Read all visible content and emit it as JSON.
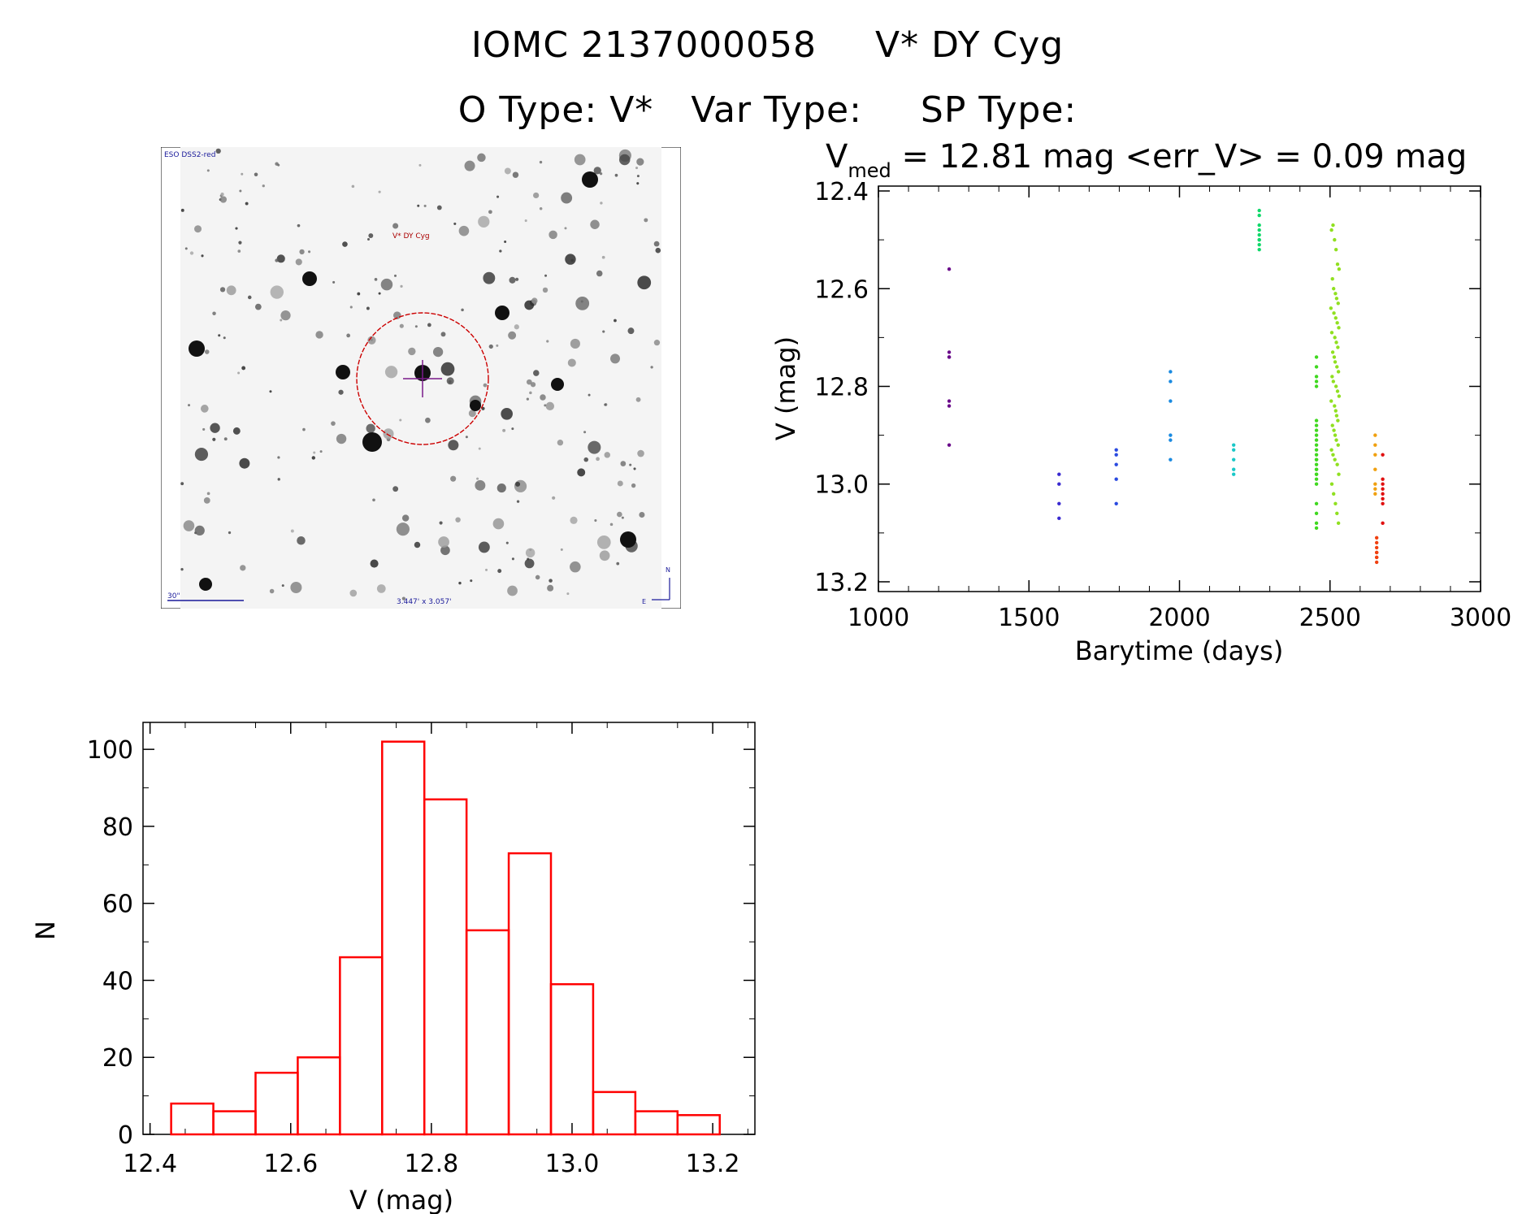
{
  "header": {
    "id_label": "IOMC 2137000058",
    "name_label": "V* DY Cyg",
    "otype_label": "O Type: V*",
    "vartype_label": "Var Type:",
    "sptype_label": "SP Type:"
  },
  "finder_chart": {
    "survey_label": "ESO DSS2-red",
    "target_label": "V* DY Cyg",
    "scale_label": "30\"",
    "fov_label": "3.447' x 3.057'",
    "north_label": "N",
    "east_label": "E",
    "circle_color": "#cc0000",
    "label_color": "#1a1a9a"
  },
  "chart_data": [
    {
      "type": "scatter",
      "title": "V_med = 12.81 mag <err_V> = 0.09 mag",
      "title_parts": {
        "v": "V",
        "sub": "med",
        "rest": " = 12.81 mag <err_V> = 0.09 mag"
      },
      "xlabel": "Barytime (days)",
      "ylabel": "V (mag)",
      "xlim": [
        1000,
        3000
      ],
      "ylim": [
        13.22,
        12.39
      ],
      "y_inverted": true,
      "xticks": [
        1000,
        1500,
        2000,
        2500,
        3000
      ],
      "xtick_labels": [
        "1000",
        "1500",
        "2000",
        "2500",
        "3000"
      ],
      "yticks": [
        12.4,
        12.6,
        12.8,
        13.0,
        13.2
      ],
      "ytick_labels": [
        "12.4",
        "12.6",
        "12.8",
        "13.0",
        "13.2"
      ],
      "series": [
        {
          "color": "#6a0a8a",
          "x": [
            1235,
            1235,
            1235,
            1235,
            1235,
            1235,
            1235
          ],
          "y": [
            12.56,
            12.73,
            12.74,
            12.83,
            12.84,
            12.92,
            12.74
          ]
        },
        {
          "color": "#3a2ad0",
          "x": [
            1600,
            1600,
            1600,
            1600
          ],
          "y": [
            12.98,
            13.0,
            13.04,
            13.07
          ]
        },
        {
          "color": "#2a4ae0",
          "x": [
            1790,
            1790,
            1790,
            1790,
            1790
          ],
          "y": [
            12.93,
            12.94,
            12.96,
            12.99,
            13.04
          ]
        },
        {
          "color": "#1a8ae0",
          "x": [
            1970,
            1970,
            1970,
            1970,
            1970,
            1970
          ],
          "y": [
            12.77,
            12.79,
            12.83,
            12.9,
            12.91,
            12.95
          ]
        },
        {
          "color": "#1ac8c8",
          "x": [
            2180,
            2180,
            2180,
            2180,
            2180
          ],
          "y": [
            12.92,
            12.93,
            12.95,
            12.97,
            12.98
          ]
        },
        {
          "color": "#10d86a",
          "x": [
            2265,
            2265,
            2265,
            2265,
            2265,
            2265,
            2265,
            2265,
            2265
          ],
          "y": [
            12.44,
            12.45,
            12.47,
            12.48,
            12.49,
            12.5,
            12.5,
            12.51,
            12.52
          ]
        },
        {
          "color": "#40d820",
          "x": [
            2455,
            2455,
            2455,
            2455,
            2455,
            2455,
            2455,
            2455,
            2455,
            2455,
            2455,
            2455,
            2455,
            2455,
            2455,
            2455,
            2455,
            2455,
            2455,
            2455,
            2455,
            2455,
            2455,
            2455,
            2455,
            2455
          ],
          "y": [
            12.74,
            12.76,
            12.78,
            12.79,
            12.8,
            12.87,
            12.88,
            12.89,
            12.9,
            12.91,
            12.92,
            12.93,
            12.94,
            12.95,
            12.95,
            12.96,
            12.97,
            12.97,
            12.98,
            12.98,
            12.99,
            13.0,
            13.04,
            13.06,
            13.08,
            13.09
          ]
        },
        {
          "color": "#90e020",
          "x": [
            2505,
            2510,
            2515,
            2520,
            2525,
            2530,
            2508,
            2512,
            2518,
            2522,
            2527,
            2503,
            2513,
            2519,
            2524,
            2529,
            2506,
            2516,
            2521,
            2526,
            2509,
            2514,
            2517,
            2523,
            2528,
            2507,
            2511,
            2520,
            2525,
            2530,
            2504,
            2515,
            2519,
            2522,
            2526,
            2508,
            2513,
            2517,
            2521,
            2527,
            2505,
            2510,
            2516,
            2524,
            2529,
            2506,
            2512,
            2518,
            2523,
            2528
          ],
          "y": [
            12.48,
            12.47,
            12.5,
            12.52,
            12.55,
            12.56,
            12.58,
            12.6,
            12.61,
            12.62,
            12.63,
            12.64,
            12.65,
            12.66,
            12.67,
            12.68,
            12.69,
            12.7,
            12.71,
            12.72,
            12.73,
            12.74,
            12.75,
            12.76,
            12.77,
            12.78,
            12.79,
            12.8,
            12.81,
            12.82,
            12.83,
            12.84,
            12.85,
            12.86,
            12.87,
            12.88,
            12.89,
            12.9,
            12.91,
            12.92,
            12.93,
            12.94,
            12.95,
            12.96,
            12.98,
            13.0,
            13.02,
            13.04,
            13.06,
            13.08
          ]
        },
        {
          "color": "#f0a010",
          "x": [
            2650,
            2650,
            2650,
            2650,
            2650,
            2650,
            2650
          ],
          "y": [
            12.9,
            12.92,
            12.94,
            12.97,
            13.0,
            13.01,
            13.02
          ]
        },
        {
          "color": "#f04010",
          "x": [
            2655,
            2655,
            2655,
            2655,
            2655,
            2655,
            2655,
            2655
          ],
          "y": [
            13.11,
            13.12,
            13.13,
            13.14,
            13.14,
            13.15,
            13.15,
            13.16
          ]
        },
        {
          "color": "#e01010",
          "x": [
            2675,
            2675,
            2675,
            2675,
            2675,
            2675,
            2675,
            2675
          ],
          "y": [
            12.94,
            12.99,
            13.0,
            13.01,
            13.02,
            13.03,
            13.04,
            13.08
          ]
        }
      ]
    },
    {
      "type": "bar",
      "title": "",
      "xlabel": "V (mag)",
      "ylabel": "N",
      "xlim": [
        12.39,
        13.26
      ],
      "ylim": [
        0,
        107
      ],
      "xticks": [
        12.4,
        12.6,
        12.8,
        13.0,
        13.2
      ],
      "xtick_labels": [
        "12.4",
        "12.6",
        "12.8",
        "13.0",
        "13.2"
      ],
      "yticks": [
        0,
        20,
        40,
        60,
        80,
        100
      ],
      "ytick_labels": [
        "0",
        "20",
        "40",
        "60",
        "80",
        "100"
      ],
      "bar_color": "#ff0000",
      "bin_edges": [
        12.43,
        12.49,
        12.55,
        12.61,
        12.67,
        12.73,
        12.79,
        12.85,
        12.91,
        12.97,
        13.03,
        13.09,
        13.15,
        13.21
      ],
      "values": [
        8,
        6,
        16,
        20,
        46,
        102,
        87,
        53,
        73,
        39,
        11,
        6,
        5
      ]
    }
  ]
}
